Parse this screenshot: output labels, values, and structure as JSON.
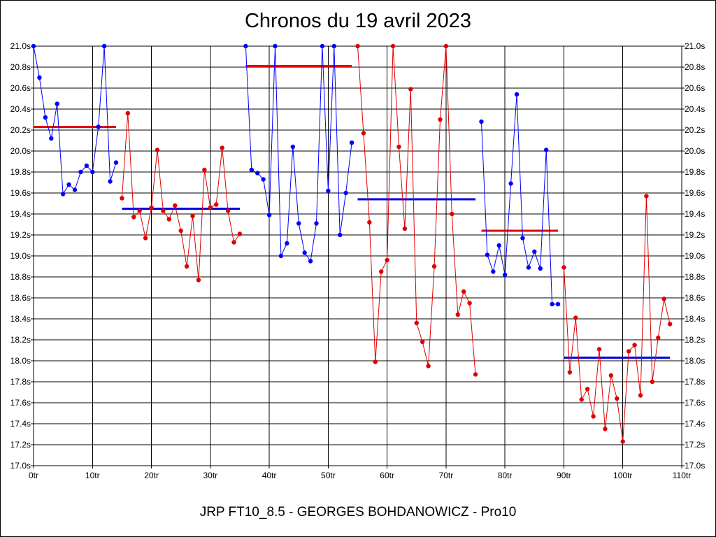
{
  "chart_data": {
    "type": "line",
    "title": "Chronos du 19 avril 2023",
    "xlabel": "",
    "ylabel": "",
    "footer": "JRP FT10_8.5 - GEORGES BOHDANOWICZ - Pro10",
    "xlim": [
      0,
      110
    ],
    "ylim": [
      17.0,
      21.0
    ],
    "x_ticks": [
      0,
      10,
      20,
      30,
      40,
      50,
      60,
      70,
      80,
      90,
      100,
      110
    ],
    "x_tick_labels": [
      "0tr",
      "10tr",
      "20tr",
      "30tr",
      "40tr",
      "50tr",
      "60tr",
      "70tr",
      "80tr",
      "90tr",
      "100tr",
      "110tr"
    ],
    "y_ticks": [
      17.0,
      17.2,
      17.4,
      17.6,
      17.8,
      18.0,
      18.2,
      18.4,
      18.6,
      18.8,
      19.0,
      19.2,
      19.4,
      19.6,
      19.8,
      20.0,
      20.2,
      20.4,
      20.6,
      20.8,
      21.0
    ],
    "y_tick_labels": [
      "17.0s",
      "17.2s",
      "17.4s",
      "17.6s",
      "17.8s",
      "18.0s",
      "18.2s",
      "18.4s",
      "18.6s",
      "18.8s",
      "19.0s",
      "19.2s",
      "19.4s",
      "19.6s",
      "19.8s",
      "20.0s",
      "20.2s",
      "20.4s",
      "20.6s",
      "20.8s",
      "21.0s"
    ],
    "grid": true,
    "y_axis_both_sides": true,
    "series": [
      {
        "color": "#0000ff",
        "x": [
          0,
          1,
          2,
          3,
          4,
          5,
          6,
          7,
          8,
          9,
          10,
          11,
          12,
          13,
          14
        ],
        "values": [
          21.0,
          20.7,
          20.32,
          20.12,
          20.45,
          19.59,
          19.68,
          19.63,
          19.8,
          19.86,
          19.8,
          20.23,
          21.0,
          19.71,
          19.89
        ],
        "mean": 20.23,
        "mean_color": "#e00000"
      },
      {
        "color": "#e00000",
        "x": [
          15,
          16,
          17,
          18,
          19,
          20,
          21,
          22,
          23,
          24,
          25,
          26,
          27,
          28,
          29,
          30,
          31,
          32,
          33,
          34,
          35
        ],
        "values": [
          19.55,
          20.36,
          19.37,
          19.43,
          19.17,
          19.46,
          20.01,
          19.43,
          19.35,
          19.48,
          19.24,
          18.9,
          19.38,
          18.77,
          19.82,
          19.46,
          19.49,
          20.03,
          19.43,
          19.13,
          19.21
        ],
        "mean": 19.45,
        "mean_color": "#0000e0"
      },
      {
        "color": "#0000ff",
        "x": [
          36,
          37,
          38,
          39,
          40,
          41,
          42,
          43,
          44,
          45,
          46,
          47,
          48,
          49,
          50,
          51,
          52,
          53,
          54
        ],
        "values": [
          21.0,
          19.82,
          19.79,
          19.73,
          19.39,
          21.0,
          19.0,
          19.12,
          20.04,
          19.31,
          19.03,
          18.95,
          19.31,
          21.0,
          19.62,
          21.0,
          19.2,
          19.6,
          20.08
        ],
        "mean": 20.81,
        "mean_color": "#e00000"
      },
      {
        "color": "#e00000",
        "x": [
          55,
          56,
          57,
          58,
          59,
          60,
          61,
          62,
          63,
          64,
          65,
          66,
          67,
          68,
          69,
          70,
          71,
          72,
          73,
          74,
          75
        ],
        "values": [
          21.0,
          20.17,
          19.32,
          17.99,
          18.85,
          18.96,
          21.0,
          20.04,
          19.26,
          20.59,
          18.36,
          18.18,
          17.95,
          18.9,
          20.3,
          21.0,
          19.4,
          18.44,
          18.66,
          18.55,
          17.87
        ],
        "mean": 19.54,
        "mean_color": "#0000e0"
      },
      {
        "color": "#0000ff",
        "x": [
          76,
          77,
          78,
          79,
          80,
          81,
          82,
          83,
          84,
          85,
          86,
          87,
          88,
          89
        ],
        "values": [
          20.28,
          19.01,
          18.85,
          19.1,
          18.82,
          19.69,
          20.54,
          19.17,
          18.89,
          19.04,
          18.88,
          20.01,
          18.54,
          18.54
        ],
        "mean": 19.24,
        "mean_color": "#e00000"
      },
      {
        "color": "#e00000",
        "x": [
          90,
          91,
          92,
          93,
          94,
          95,
          96,
          97,
          98,
          99,
          100,
          101,
          102,
          103,
          104,
          105,
          106,
          107,
          108
        ],
        "values": [
          18.89,
          17.89,
          18.41,
          17.63,
          17.73,
          17.47,
          18.11,
          17.35,
          17.86,
          17.64,
          17.23,
          18.09,
          18.15,
          17.67,
          19.57,
          17.8,
          18.22,
          18.59,
          18.35
        ],
        "mean": 18.03,
        "mean_color": "#0000e0"
      }
    ]
  }
}
